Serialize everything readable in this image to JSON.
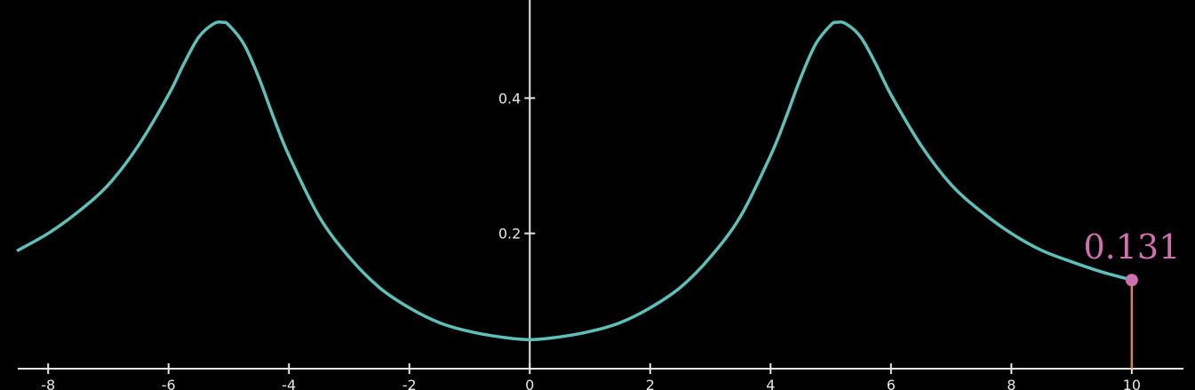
{
  "colors": {
    "background": "#000000",
    "axis": "#e6e6e6",
    "curve": "#5fbfb9",
    "marker": "#d070b0",
    "stem": "#d08a5a"
  },
  "chart_data": {
    "type": "line",
    "title": "",
    "xlabel": "",
    "ylabel": "",
    "xlim": [
      -8.8,
      11.05
    ],
    "ylim": [
      0,
      0.545
    ],
    "grid": false,
    "x_ticks": [
      {
        "value": -8,
        "label": "-8"
      },
      {
        "value": -6,
        "label": "-6"
      },
      {
        "value": -4,
        "label": "-4"
      },
      {
        "value": -2,
        "label": "-2"
      },
      {
        "value": 0,
        "label": "0"
      },
      {
        "value": 2,
        "label": "2"
      },
      {
        "value": 4,
        "label": "4"
      },
      {
        "value": 6,
        "label": "6"
      },
      {
        "value": 8,
        "label": "8"
      },
      {
        "value": 10,
        "label": "10"
      }
    ],
    "y_ticks": [
      {
        "value": 0.2,
        "label": "0.2"
      },
      {
        "value": 0.4,
        "label": "0.4"
      }
    ],
    "series": [
      {
        "x": [
          -8.5,
          -8.0,
          -7.5,
          -7.0,
          -6.5,
          -6.0,
          -5.75,
          -5.5,
          -5.25,
          -5.1,
          -5.0,
          -4.75,
          -4.5,
          -4.25,
          -4.0,
          -3.5,
          -3.0,
          -2.5,
          -2.0,
          -1.5,
          -1.0,
          -0.5,
          0.0,
          0.5,
          1.0,
          1.5,
          2.0,
          2.5,
          3.0,
          3.5,
          4.0,
          4.25,
          4.5,
          4.75,
          5.0,
          5.1,
          5.25,
          5.5,
          5.75,
          6.0,
          6.5,
          7.0,
          7.5,
          8.0,
          8.5,
          9.0,
          9.5,
          10.0
        ],
        "y": [
          0.175,
          0.2,
          0.232,
          0.272,
          0.33,
          0.405,
          0.45,
          0.49,
          0.51,
          0.512,
          0.508,
          0.48,
          0.43,
          0.37,
          0.315,
          0.225,
          0.165,
          0.12,
          0.09,
          0.068,
          0.055,
          0.047,
          0.043,
          0.047,
          0.055,
          0.068,
          0.09,
          0.12,
          0.165,
          0.225,
          0.315,
          0.37,
          0.43,
          0.48,
          0.508,
          0.512,
          0.51,
          0.49,
          0.45,
          0.405,
          0.33,
          0.272,
          0.232,
          0.2,
          0.175,
          0.158,
          0.143,
          0.131
        ]
      }
    ],
    "highlight": {
      "x": 10,
      "y": 0.131,
      "label": "0.131"
    }
  }
}
